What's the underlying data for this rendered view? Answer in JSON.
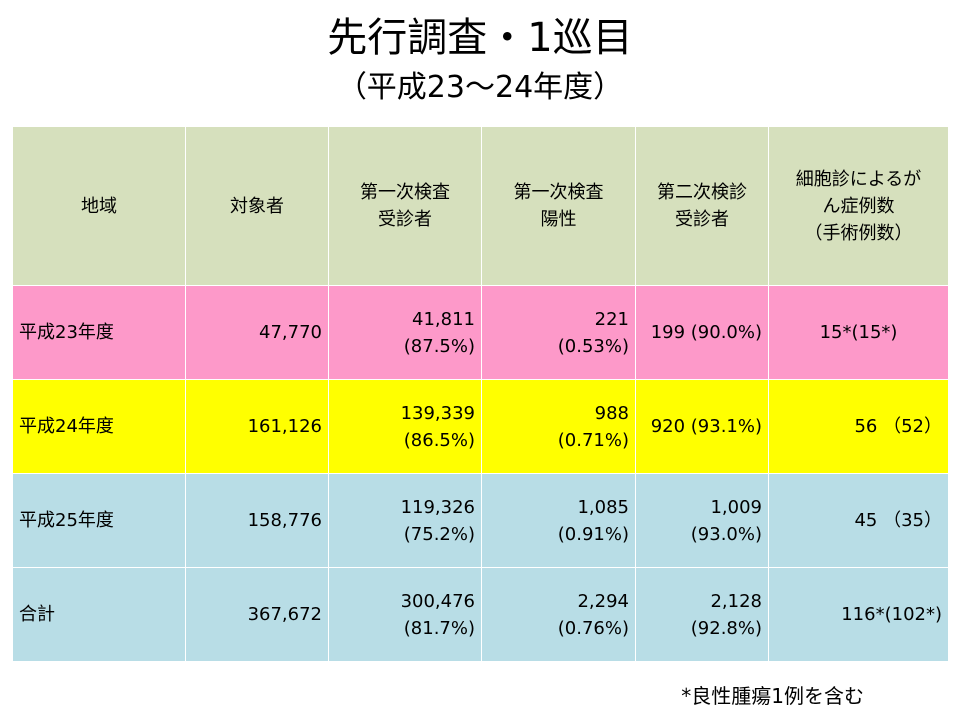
{
  "title": "先行調査・1巡目",
  "subtitle": "（平成23～24年度）",
  "table": {
    "headers": [
      [
        "地域"
      ],
      [
        "対象者"
      ],
      [
        "第一次検査",
        "受診者"
      ],
      [
        "第一次検査",
        "陽性"
      ],
      [
        "第二次検診",
        "受診者"
      ],
      [
        "細胞診によるが",
        "ん症例数",
        "（手術例数）"
      ]
    ],
    "rows": [
      {
        "region": "平成23年度",
        "target": "47,770",
        "first_exam": [
          "41,811",
          "(87.5%)"
        ],
        "first_positive": [
          "221",
          "(0.53%)"
        ],
        "second_exam": [
          "199 (90.0%)"
        ],
        "cancer_cases": [
          "15*(15*)"
        ]
      },
      {
        "region": "平成24年度",
        "target": "161,126",
        "first_exam": [
          "139,339",
          "(86.5%)"
        ],
        "first_positive": [
          "988",
          "(0.71%)"
        ],
        "second_exam": [
          "920 (93.1%)"
        ],
        "cancer_cases": [
          "56 （52）"
        ]
      },
      {
        "region": "平成25年度",
        "target": "158,776",
        "first_exam": [
          "119,326",
          "(75.2%)"
        ],
        "first_positive": [
          "1,085",
          "(0.91%)"
        ],
        "second_exam": [
          "1,009",
          "(93.0%)"
        ],
        "cancer_cases": [
          "45 （35）"
        ]
      },
      {
        "region": "合計",
        "target": "367,672",
        "first_exam": [
          "300,476",
          "(81.7%)"
        ],
        "first_positive": [
          "2,294",
          "(0.76%)"
        ],
        "second_exam": [
          "2,128",
          "(92.8%)"
        ],
        "cancer_cases": [
          "116*(102*)"
        ]
      }
    ]
  },
  "footnote": "*良性腫瘍1例を含む",
  "colors": {
    "header_bg": "#d6e0bd",
    "row_h23": "#fd99c9",
    "row_h24": "#ffff00",
    "row_h25": "#b8dde6",
    "row_total": "#b8dde6"
  }
}
